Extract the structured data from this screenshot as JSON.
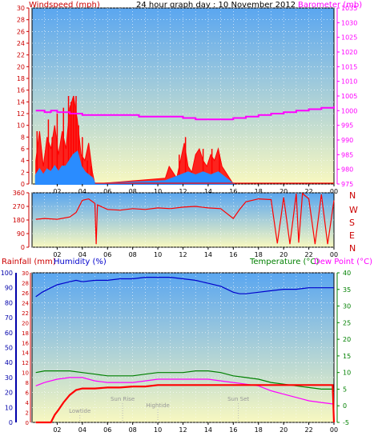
{
  "title": "24 hour graph day : 10 November 2012",
  "colors": {
    "wind": "#ff0000",
    "gust_fill": "#ff0000",
    "avg_fill": "#2a8cff",
    "baro": "#ff00ff",
    "dir": "#ff0000",
    "rain": "#ff0000",
    "humidity": "#0000cc",
    "temp": "#008000",
    "dew": "#ff00ff",
    "axis_red": "#cc0000",
    "axis_blue": "#0000aa",
    "axis_green": "#008000",
    "bg_top": "#5aa6f0",
    "bg_bottom": "#f8f8c0"
  },
  "chart_data": [
    {
      "type": "line",
      "name": "wind-baro",
      "left_label": "Windspeed (mph)",
      "right_label": "Barometer (mb)",
      "ylim": [
        0,
        30
      ],
      "y2lim": [
        975,
        1035
      ],
      "yticks": [
        0,
        2,
        4,
        6,
        8,
        10,
        12,
        14,
        16,
        18,
        20,
        22,
        24,
        26,
        28,
        30
      ],
      "y2ticks": [
        975,
        980,
        985,
        990,
        995,
        1000,
        1005,
        1010,
        1015,
        1020,
        1025,
        1030,
        1035
      ],
      "xticks": [
        "02",
        "04",
        "06",
        "08",
        "10",
        "12",
        "14",
        "16",
        "18",
        "20",
        "22",
        "00"
      ],
      "x_hours": [
        2,
        4,
        6,
        8,
        10,
        12,
        14,
        16,
        18,
        20,
        22,
        24
      ],
      "gust": {
        "x": [
          0.3,
          0.6,
          0.9,
          1.2,
          1.5,
          1.8,
          2.1,
          2.4,
          2.7,
          3.0,
          3.3,
          3.6,
          3.9,
          4.2,
          4.5,
          4.8,
          5.0,
          10.6,
          10.9,
          11.2,
          11.5,
          11.8,
          12.1,
          12.4,
          12.7,
          13.0,
          13.3,
          13.6,
          13.9,
          14.2,
          14.5,
          14.8,
          15.1,
          15.4,
          15.7,
          16.0
        ],
        "y": [
          4,
          9,
          3,
          8,
          6,
          10,
          5,
          9,
          6,
          13,
          15,
          11,
          5,
          4,
          7,
          2,
          0,
          1,
          3,
          2,
          1,
          4,
          7,
          3,
          2,
          5,
          6,
          4,
          3,
          5,
          4,
          6,
          3,
          2,
          1,
          0
        ]
      },
      "gust_peaks": {
        "x": [
          0.4,
          1.3,
          1.6,
          2.0,
          2.5,
          2.9,
          3.1,
          3.3,
          3.5,
          3.7,
          4.0,
          4.4,
          4.7,
          11.7,
          12.2,
          13.6,
          14.3,
          14.9
        ],
        "y": [
          9,
          11,
          8,
          12,
          13,
          15,
          14,
          15,
          15,
          10,
          8,
          4,
          3,
          5,
          8,
          6,
          6,
          5
        ]
      },
      "average": {
        "x": [
          0.3,
          0.6,
          0.9,
          1.2,
          1.5,
          1.8,
          2.1,
          2.4,
          2.7,
          3.0,
          3.3,
          3.6,
          3.9,
          4.2,
          4.5,
          4.8,
          5.0,
          10.6,
          11.2,
          11.8,
          12.4,
          13.0,
          13.6,
          14.2,
          14.8,
          15.4,
          16.0
        ],
        "y": [
          1.5,
          2.5,
          1.5,
          2.5,
          2.0,
          3.0,
          2.0,
          3.0,
          3.0,
          4.0,
          5.0,
          5.5,
          3.0,
          2.0,
          1.5,
          1.0,
          0,
          0.5,
          1.0,
          1.5,
          2.0,
          1.5,
          2.0,
          1.5,
          2.0,
          1.0,
          0
        ]
      },
      "barometer": {
        "x": [
          0.3,
          1.0,
          1.5,
          2.0,
          3.0,
          3.5,
          4.0,
          5.0,
          6.0,
          7.0,
          8.0,
          8.5,
          9.0,
          10.0,
          11.0,
          12.0,
          13.0,
          14.0,
          15.0,
          16.0,
          17.0,
          18.0,
          19.0,
          20.0,
          21.0,
          22.0,
          23.0,
          24.0
        ],
        "y": [
          1000,
          999.5,
          1000,
          999.5,
          999,
          999,
          998.5,
          998.5,
          998.5,
          998.5,
          998.5,
          998,
          998,
          998,
          998,
          997.5,
          997,
          997,
          997,
          997.5,
          998,
          998.5,
          999,
          999.5,
          1000,
          1000.5,
          1001,
          1001.5
        ]
      }
    },
    {
      "type": "line",
      "name": "wind-direction",
      "ylim": [
        0,
        360
      ],
      "yticks": [
        0,
        90,
        180,
        270,
        360
      ],
      "right_ticks": [
        "N",
        "W",
        "S",
        "E",
        "N"
      ],
      "xticks": [
        "02",
        "04",
        "06",
        "08",
        "10",
        "12",
        "14",
        "16",
        "18",
        "20",
        "22",
        "00"
      ],
      "x_hours": [
        2,
        4,
        6,
        8,
        10,
        12,
        14,
        16,
        18,
        20,
        22,
        24
      ],
      "direction": {
        "x": [
          0.3,
          1.0,
          2.0,
          3.0,
          3.5,
          4.0,
          4.5,
          5.0,
          5.1,
          5.2,
          6.0,
          7.0,
          8.0,
          9.0,
          10.0,
          11.0,
          12.0,
          13.0,
          14.0,
          15.0,
          16.0,
          16.5,
          17.0,
          18.0,
          19.0,
          19.5,
          20.0,
          20.5,
          21.0,
          21.2,
          21.5,
          22.0,
          22.5,
          23.0,
          23.5,
          24.0
        ],
        "y": [
          185,
          190,
          185,
          200,
          230,
          310,
          320,
          290,
          20,
          280,
          250,
          245,
          255,
          250,
          260,
          255,
          265,
          270,
          260,
          255,
          190,
          250,
          300,
          320,
          315,
          25,
          330,
          20,
          355,
          30,
          355,
          320,
          20,
          350,
          20,
          310
        ]
      }
    },
    {
      "type": "line",
      "name": "rain-humidity-temp",
      "left_labels": [
        "Rainfall (mm)",
        "Humidity (%)"
      ],
      "right_labels": [
        "Temperature (°C)",
        "Dew Point (°C)"
      ],
      "humidity_ylim": [
        0,
        100
      ],
      "humidity_ticks": [
        0,
        10,
        20,
        30,
        40,
        50,
        60,
        70,
        80,
        90,
        100
      ],
      "rain_ylim": [
        0,
        30
      ],
      "rain_ticks": [
        0,
        2,
        4,
        6,
        8,
        10,
        12,
        14,
        16,
        18,
        20,
        22,
        24,
        26,
        28,
        30
      ],
      "temp_ylim": [
        -5,
        40
      ],
      "temp_ticks": [
        -5,
        0,
        5,
        10,
        15,
        20,
        25,
        30,
        35,
        40
      ],
      "xticks": [
        "02",
        "04",
        "06",
        "08",
        "10",
        "12",
        "14",
        "16",
        "18",
        "20",
        "22",
        "00"
      ],
      "x_hours": [
        2,
        4,
        6,
        8,
        10,
        12,
        14,
        16,
        18,
        20,
        22,
        24
      ],
      "annotations": [
        {
          "label": "Lowtide",
          "x": 3.8
        },
        {
          "label": "Sun Rise",
          "x": 7.2
        },
        {
          "label": "Hightide",
          "x": 10.0
        },
        {
          "label": "Sun Set",
          "x": 16.4
        }
      ],
      "humidity": {
        "x": [
          0.3,
          0.8,
          1.5,
          2.0,
          2.5,
          3.0,
          3.5,
          4.0,
          5.0,
          6.0,
          7.0,
          8.0,
          9.0,
          10.0,
          11.0,
          12.0,
          13.0,
          14.0,
          15.0,
          15.5,
          16.0,
          16.5,
          17.0,
          18.0,
          19.0,
          20.0,
          21.0,
          22.0,
          23.0,
          24.0
        ],
        "y": [
          84,
          87,
          90,
          92,
          93,
          94,
          95,
          94,
          95,
          95,
          96,
          96,
          97,
          97,
          97,
          96,
          95,
          93,
          91,
          89,
          87,
          86,
          86,
          87,
          88,
          89,
          89,
          90,
          90,
          90
        ]
      },
      "rainfall": {
        "x": [
          0.3,
          1.5,
          1.8,
          2.1,
          2.5,
          3.0,
          3.5,
          4.0,
          5.0,
          6.0,
          7.0,
          8.0,
          9.0,
          10.0,
          11.0,
          12.0,
          13.0,
          14.0,
          15.0,
          16.0,
          18.0,
          20.0,
          22.0,
          23.9,
          24.0
        ],
        "y": [
          0,
          0,
          1.5,
          2.5,
          4,
          5.5,
          6.5,
          6.8,
          6.8,
          7,
          7,
          7.2,
          7.2,
          7.5,
          7.5,
          7.5,
          7.5,
          7.5,
          7.5,
          7.5,
          7.5,
          7.5,
          7.5,
          7.5,
          0
        ]
      },
      "temperature": {
        "x": [
          0.3,
          1.0,
          2.0,
          3.0,
          4.0,
          5.0,
          6.0,
          7.0,
          8.0,
          9.0,
          10.0,
          11.0,
          12.0,
          13.0,
          14.0,
          15.0,
          16.0,
          17.0,
          18.0,
          19.0,
          20.0,
          21.0,
          22.0,
          23.0,
          24.0
        ],
        "y": [
          10,
          10.5,
          10.5,
          10.5,
          10,
          9.5,
          9,
          9,
          9,
          9.5,
          10,
          10,
          10,
          10.5,
          10.5,
          10,
          9,
          8.5,
          8,
          7,
          6.5,
          6,
          5.5,
          5,
          5
        ]
      },
      "dewpoint": {
        "x": [
          0.3,
          1.0,
          2.0,
          3.0,
          4.0,
          5.0,
          6.0,
          7.0,
          8.0,
          9.0,
          10.0,
          11.0,
          12.0,
          13.0,
          14.0,
          15.0,
          16.0,
          17.0,
          18.0,
          19.0,
          20.0,
          21.0,
          22.0,
          23.0,
          24.0
        ],
        "y": [
          6,
          7,
          8,
          8.5,
          8.5,
          7.5,
          7,
          7,
          7,
          7.5,
          8,
          8,
          8,
          8,
          8,
          7.5,
          7,
          6.5,
          6,
          4.5,
          3.5,
          2.5,
          1.5,
          1,
          0.5
        ]
      }
    }
  ]
}
